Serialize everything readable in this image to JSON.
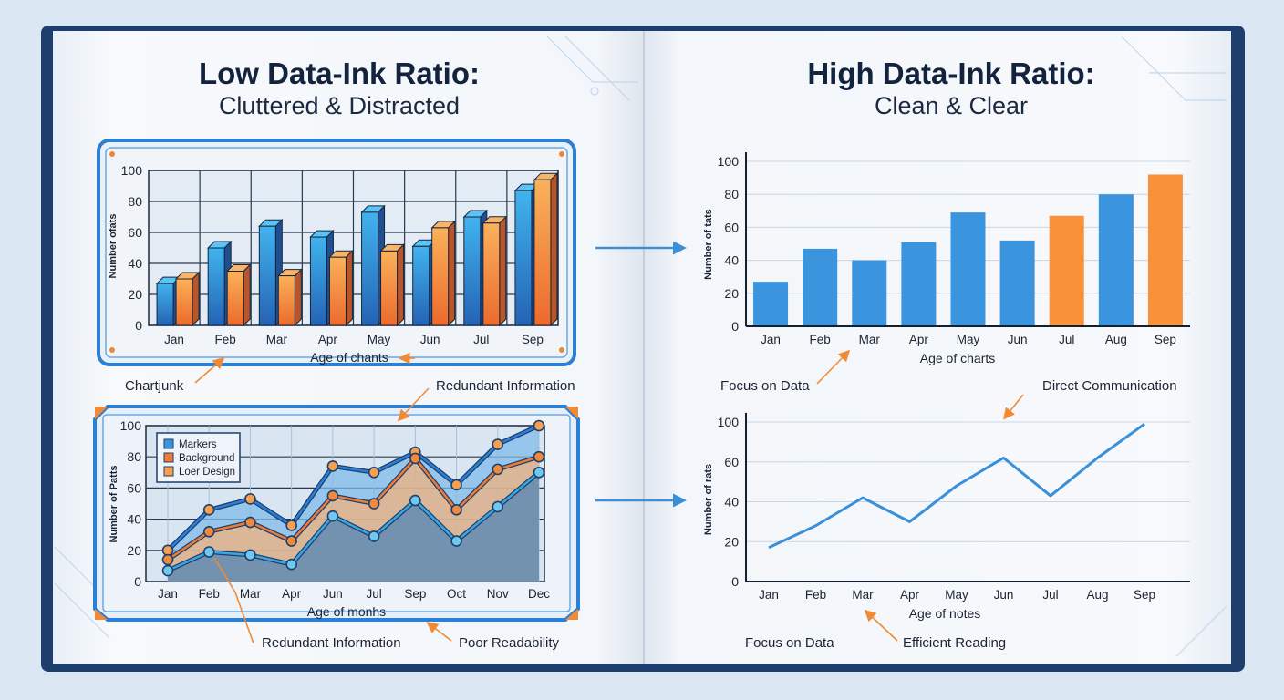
{
  "colors": {
    "cover": "#1e3f6e",
    "page": "#f4f7fb",
    "frame_blue": "#2b7fd4",
    "bar_blue": "#3b94de",
    "bar_orange": "#f7923a",
    "line_blue": "#3a8fd8",
    "arrow_orange": "#f08a36",
    "arrow_blue": "#3a8fd8"
  },
  "left_page": {
    "title": "Low Data-Ink Ratio:",
    "subtitle": "Cluttered & Distracted",
    "annotations": {
      "chartjunk": "Chartjunk",
      "redundant_top": "Redundant Information",
      "redundant_bottom": "Redundant Information",
      "poor_readability": "Poor Readability"
    }
  },
  "right_page": {
    "title": "High Data-Ink Ratio:",
    "subtitle": "Clean & Clear",
    "annotations": {
      "focus_top": "Focus on Data",
      "direct_communication": "Direct Communication",
      "focus_bottom": "Focus on Data",
      "efficient_reading": "Efficient Reading"
    }
  },
  "chart_data": [
    {
      "type": "bar",
      "style": "3d-cluttered",
      "title": "",
      "categories": [
        "Jan",
        "Feb",
        "Mar",
        "Apr",
        "May",
        "Jun",
        "Jul",
        "Sep"
      ],
      "series": [
        {
          "name": "blue",
          "values": [
            27,
            50,
            64,
            57,
            73,
            51,
            70,
            87
          ]
        },
        {
          "name": "orange",
          "values": [
            30,
            35,
            32,
            44,
            48,
            63,
            66,
            94
          ]
        }
      ],
      "xlabel": "Age of chants",
      "ylabel": "Number ofats",
      "yticks": [
        0,
        20,
        40,
        60,
        80,
        100
      ],
      "ylim": [
        0,
        100
      ],
      "grid": true
    },
    {
      "type": "area",
      "style": "cluttered",
      "title": "",
      "categories": [
        "Jan",
        "Feb",
        "Mar",
        "Apr",
        "Jun",
        "Jul",
        "Sep",
        "Oct",
        "Nov",
        "Dec"
      ],
      "series": [
        {
          "name": "Markers",
          "values": [
            20,
            46,
            53,
            36,
            74,
            70,
            83,
            62,
            88,
            100
          ]
        },
        {
          "name": "Background",
          "values": [
            14,
            32,
            38,
            26,
            55,
            50,
            79,
            46,
            72,
            80
          ]
        },
        {
          "name": "Loer Design",
          "values": [
            7,
            19,
            17,
            11,
            42,
            29,
            52,
            26,
            48,
            70
          ]
        }
      ],
      "legend": [
        "Markers",
        "Background",
        "Loer Design"
      ],
      "legend_position": "top-left",
      "xlabel": "Age of monhs",
      "ylabel": "Number of Patts",
      "yticks": [
        0,
        20,
        40,
        60,
        80,
        100
      ],
      "ylim": [
        0,
        100
      ],
      "grid": true
    },
    {
      "type": "bar",
      "style": "clean",
      "title": "",
      "categories": [
        "Jan",
        "Feb",
        "Mar",
        "Apr",
        "May",
        "Jun",
        "Jul",
        "Aug",
        "Sep"
      ],
      "values": [
        27,
        47,
        40,
        51,
        69,
        52,
        67,
        80,
        92
      ],
      "highlight": [
        false,
        false,
        false,
        false,
        false,
        false,
        true,
        false,
        true
      ],
      "xlabel": "Age of charts",
      "ylabel": "Number of tats",
      "yticks": [
        0,
        20,
        40,
        60,
        80,
        100
      ],
      "ylim": [
        0,
        100
      ],
      "grid": true
    },
    {
      "type": "line",
      "style": "clean",
      "title": "",
      "categories": [
        "Jan",
        "Feb",
        "Mar",
        "Apr",
        "May",
        "Jun",
        "Jul",
        "Aug",
        "Sep"
      ],
      "values": [
        17,
        28,
        42,
        30,
        48,
        64,
        43,
        64,
        98
      ],
      "xlabel": "Age of notes",
      "ylabel": "Number of rats",
      "yticks": [
        0,
        20,
        40,
        60,
        100
      ],
      "ylim": [
        0,
        100
      ],
      "grid": true
    }
  ]
}
